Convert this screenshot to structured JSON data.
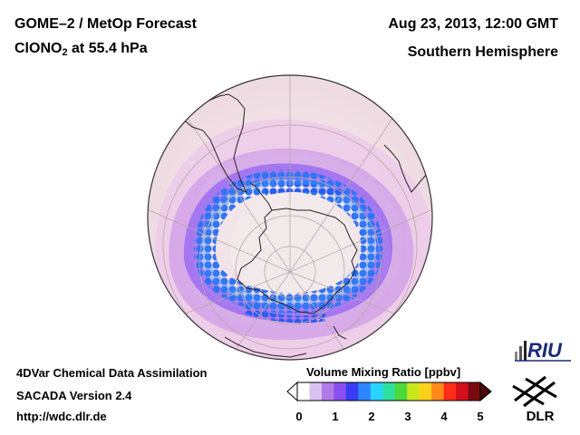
{
  "header": {
    "product": "GOME–2 / MetOp Forecast",
    "species_main": "ClONO",
    "species_sub": "2",
    "species_level": " at 55.4 hPa",
    "datetime": "Aug 23, 2013, 12:00 GMT",
    "region": "Southern Hemisphere"
  },
  "footer": {
    "system": "4DVar Chemical Data Assimilation",
    "version": "SACADA Version 2.4",
    "url": "http://wdc.dlr.de"
  },
  "colorbar": {
    "title": "Volume Mixing Ratio [ppbv]",
    "ticks": [
      "0",
      "1",
      "2",
      "3",
      "4",
      "5"
    ],
    "min": 0,
    "max": 5,
    "colors": [
      "#ffffff",
      "#d9c2f0",
      "#b27ae8",
      "#8a4ff0",
      "#3a3df5",
      "#2e86ff",
      "#28d4ff",
      "#2ee0a0",
      "#4cd93a",
      "#c9e81c",
      "#ffd11a",
      "#ff8a1a",
      "#ff2d1a",
      "#d4101a",
      "#7a0a10"
    ]
  },
  "logos": {
    "riu": "RIU",
    "dlr": "DLR"
  }
}
